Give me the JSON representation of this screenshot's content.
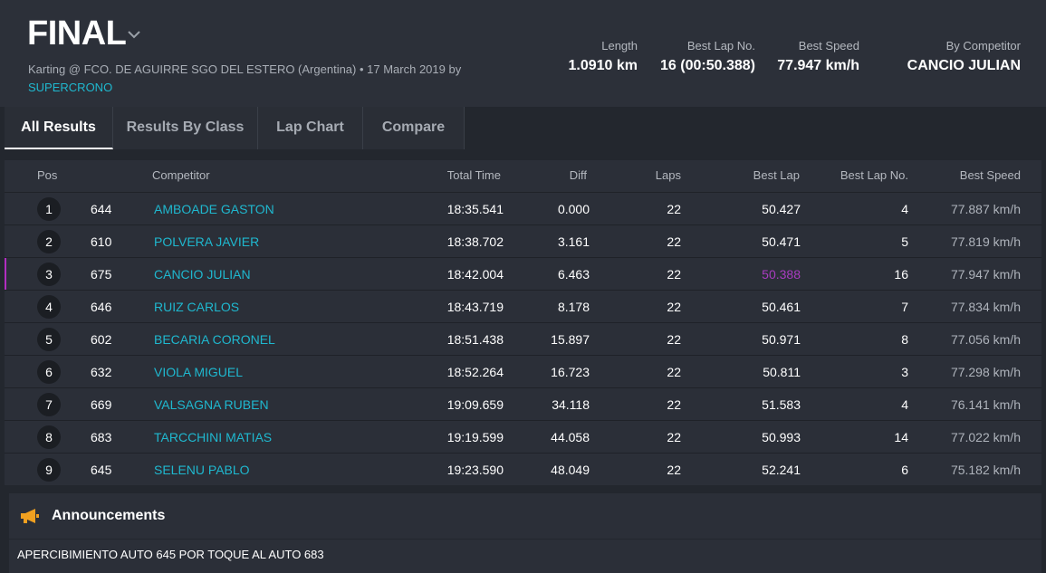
{
  "header": {
    "title": "FINAL",
    "subtitle": "Karting @ FCO. DE AGUIRRE SGO DEL ESTERO (Argentina) • 17 March 2019 by",
    "organizer": "SUPERCRONO",
    "stats": [
      {
        "label": "Length",
        "value": "1.0910 km"
      },
      {
        "label": "Best Lap No.",
        "value": "16 (00:50.388)"
      },
      {
        "label": "Best Speed",
        "value": "77.947 km/h"
      },
      {
        "label": "By Competitor",
        "value": "CANCIO JULIAN"
      }
    ]
  },
  "tabs": [
    "All Results",
    "Results By Class",
    "Lap Chart",
    "Compare"
  ],
  "table": {
    "headers": {
      "pos": "Pos",
      "competitor": "Competitor",
      "total_time": "Total Time",
      "diff": "Diff",
      "laps": "Laps",
      "best_lap": "Best Lap",
      "best_lap_no": "Best Lap No.",
      "best_speed": "Best Speed"
    },
    "rows": [
      {
        "pos": "1",
        "number": "644",
        "competitor": "AMBOADE GASTON",
        "total_time": "18:35.541",
        "diff": "0.000",
        "laps": "22",
        "best_lap": "50.427",
        "best_lap_no": "4",
        "best_speed": "77.887 km/h"
      },
      {
        "pos": "2",
        "number": "610",
        "competitor": "POLVERA JAVIER",
        "total_time": "18:38.702",
        "diff": "3.161",
        "laps": "22",
        "best_lap": "50.471",
        "best_lap_no": "5",
        "best_speed": "77.819 km/h"
      },
      {
        "pos": "3",
        "number": "675",
        "competitor": "CANCIO JULIAN",
        "total_time": "18:42.004",
        "diff": "6.463",
        "laps": "22",
        "best_lap": "50.388",
        "best_lap_no": "16",
        "best_speed": "77.947 km/h"
      },
      {
        "pos": "4",
        "number": "646",
        "competitor": "RUIZ CARLOS",
        "total_time": "18:43.719",
        "diff": "8.178",
        "laps": "22",
        "best_lap": "50.461",
        "best_lap_no": "7",
        "best_speed": "77.834 km/h"
      },
      {
        "pos": "5",
        "number": "602",
        "competitor": "BECARIA CORONEL",
        "total_time": "18:51.438",
        "diff": "15.897",
        "laps": "22",
        "best_lap": "50.971",
        "best_lap_no": "8",
        "best_speed": "77.056 km/h"
      },
      {
        "pos": "6",
        "number": "632",
        "competitor": "VIOLA MIGUEL",
        "total_time": "18:52.264",
        "diff": "16.723",
        "laps": "22",
        "best_lap": "50.811",
        "best_lap_no": "3",
        "best_speed": "77.298 km/h"
      },
      {
        "pos": "7",
        "number": "669",
        "competitor": "VALSAGNA RUBEN",
        "total_time": "19:09.659",
        "diff": "34.118",
        "laps": "22",
        "best_lap": "51.583",
        "best_lap_no": "4",
        "best_speed": "76.141 km/h"
      },
      {
        "pos": "8",
        "number": "683",
        "competitor": "TARCCHINI MATIAS",
        "total_time": "19:19.599",
        "diff": "44.058",
        "laps": "22",
        "best_lap": "50.993",
        "best_lap_no": "14",
        "best_speed": "77.022 km/h"
      },
      {
        "pos": "9",
        "number": "645",
        "competitor": "SELENU PABLO",
        "total_time": "19:23.590",
        "diff": "48.049",
        "laps": "22",
        "best_lap": "52.241",
        "best_lap_no": "6",
        "best_speed": "75.182 km/h"
      }
    ]
  },
  "announcements": {
    "title": "Announcements",
    "items": [
      "APERCIBIMIENTO AUTO 645 POR TOQUE AL AUTO 683"
    ]
  }
}
